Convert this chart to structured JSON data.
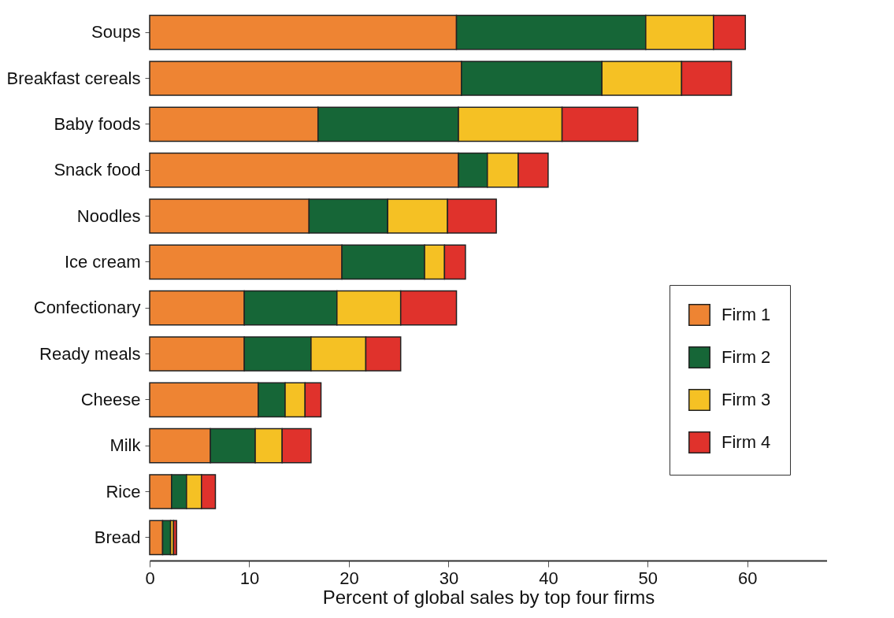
{
  "chart_data": {
    "type": "bar",
    "orientation": "horizontal",
    "stacked": true,
    "xlabel": "Percent of global sales by top four firms",
    "categories": [
      "Soups",
      "Breakfast cereals",
      "Baby foods",
      "Snack food",
      "Noodles",
      "Ice cream",
      "Confectionary",
      "Ready meals",
      "Cheese",
      "Milk",
      "Rice",
      "Bread"
    ],
    "series": [
      {
        "name": "Firm 1",
        "color": "#ee8433",
        "values": [
          30.8,
          31.3,
          16.9,
          31.0,
          16.0,
          19.3,
          9.5,
          9.5,
          10.9,
          6.1,
          2.2,
          1.3
        ]
      },
      {
        "name": "Firm 2",
        "color": "#166637",
        "values": [
          19.0,
          14.1,
          14.1,
          2.9,
          7.9,
          8.3,
          9.3,
          6.7,
          2.7,
          4.5,
          1.5,
          0.8
        ]
      },
      {
        "name": "Firm 3",
        "color": "#f5c124",
        "values": [
          6.8,
          8.0,
          10.4,
          3.1,
          6.0,
          2.0,
          6.4,
          5.5,
          2.0,
          2.7,
          1.5,
          0.3
        ]
      },
      {
        "name": "Firm 4",
        "color": "#e0322c",
        "values": [
          3.2,
          5.0,
          7.6,
          3.0,
          4.9,
          2.1,
          5.6,
          3.5,
          1.6,
          2.9,
          1.4,
          0.3
        ]
      }
    ],
    "xlim": [
      0,
      68
    ],
    "xticks": [
      0,
      10,
      20,
      30,
      40,
      50,
      60
    ],
    "legend": "right",
    "grid": false
  }
}
